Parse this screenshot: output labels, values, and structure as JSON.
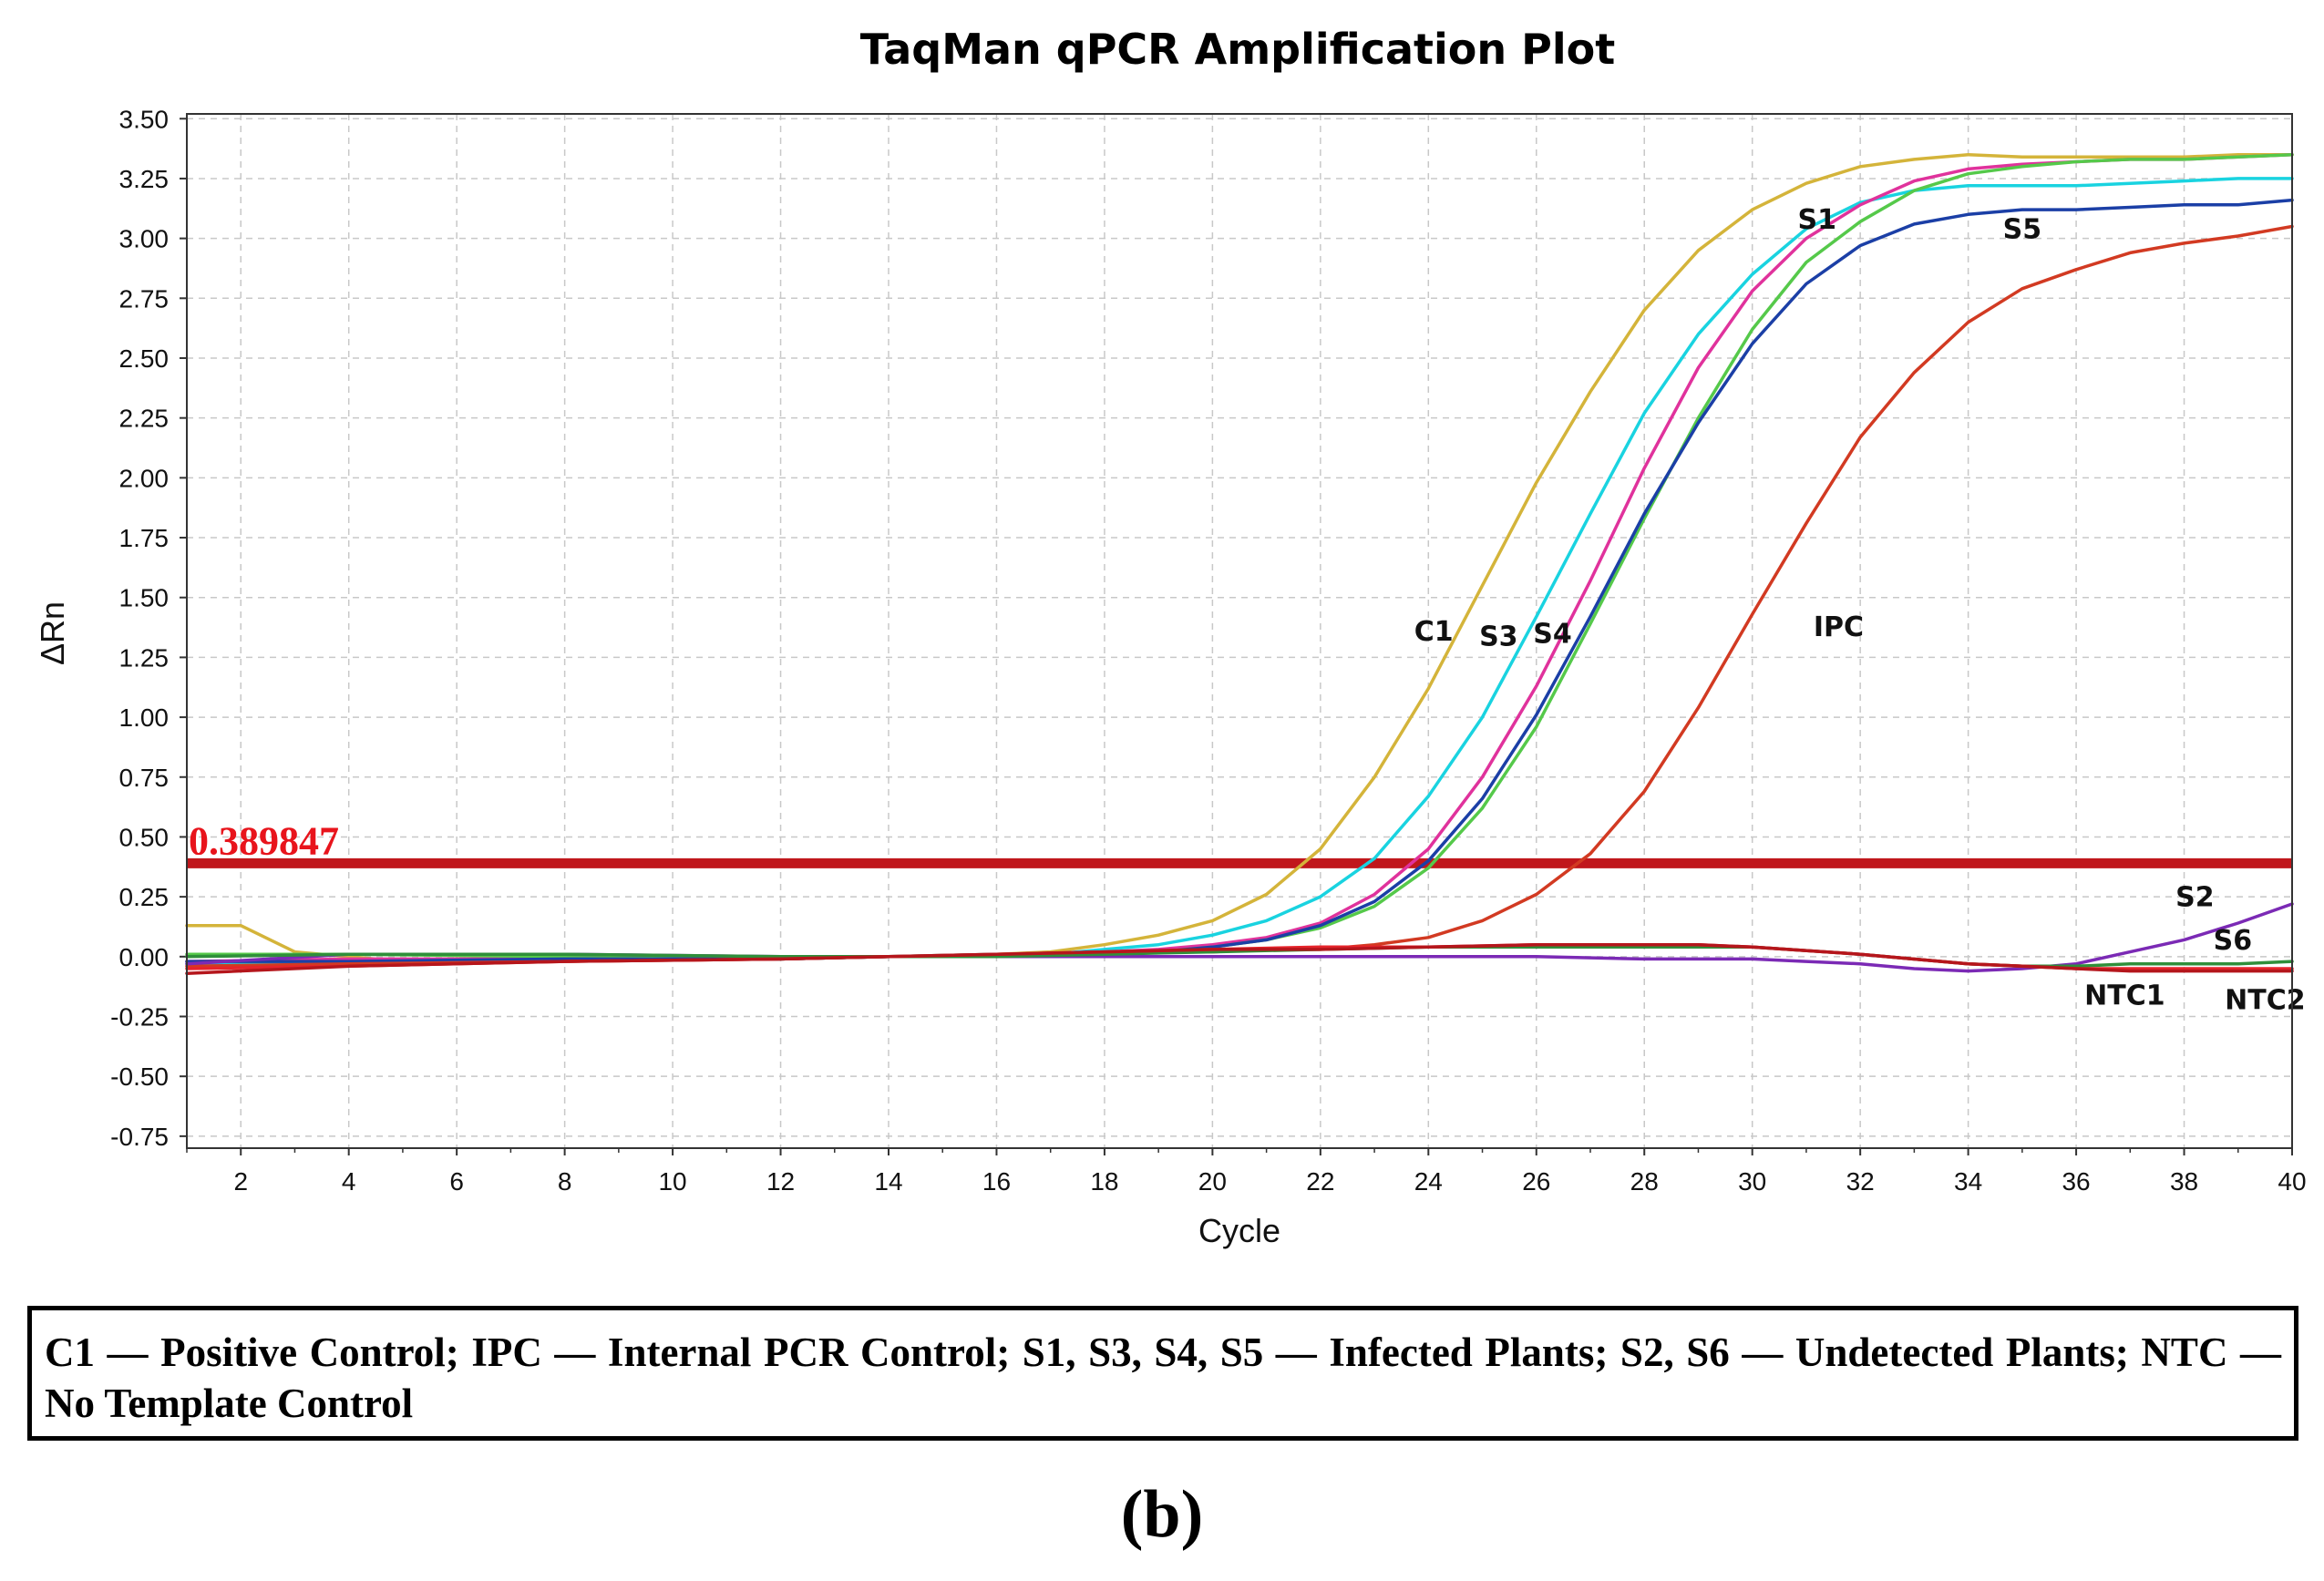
{
  "chart_data": {
    "type": "line",
    "title": "TaqMan qPCR Amplification Plot",
    "xlabel": "Cycle",
    "ylabel": "ΔRn",
    "xlim": [
      1,
      40
    ],
    "ylim": [
      -0.8,
      3.52
    ],
    "x_ticks": [
      2,
      4,
      6,
      8,
      10,
      12,
      14,
      16,
      18,
      20,
      22,
      24,
      26,
      28,
      30,
      32,
      34,
      36,
      38,
      40
    ],
    "y_ticks": [
      3.5,
      3.25,
      3.0,
      2.75,
      2.5,
      2.25,
      2.0,
      1.75,
      1.5,
      1.25,
      1.0,
      0.75,
      0.5,
      0.25,
      0.0,
      -0.25,
      -0.5,
      -0.75
    ],
    "y_tick_labels": [
      "3.50",
      "3.25",
      "3.00",
      "2.75",
      "2.50",
      "2.25",
      "2.00",
      "1.75",
      "1.50",
      "1.25",
      "1.00",
      "0.75",
      "0.50",
      "0.25",
      "0.00",
      "-0.25",
      "-0.50",
      "-0.75"
    ],
    "grid": true,
    "threshold": {
      "value": 0.389847,
      "label": "0.389847",
      "color": "#c0171c",
      "label_color": "#e8141c"
    },
    "series": [
      {
        "name": "C1",
        "color": "#d4b43a",
        "x": [
          1,
          2,
          3,
          4,
          5,
          6,
          8,
          10,
          12,
          14,
          16,
          17,
          18,
          19,
          20,
          21,
          22,
          23,
          24,
          25,
          26,
          27,
          28,
          29,
          30,
          31,
          32,
          33,
          34,
          35,
          36,
          37,
          38,
          39,
          40
        ],
        "y": [
          0.13,
          0.13,
          0.02,
          0.0,
          -0.02,
          -0.01,
          -0.01,
          -0.01,
          -0.01,
          0.0,
          0.01,
          0.02,
          0.05,
          0.09,
          0.15,
          0.26,
          0.45,
          0.75,
          1.12,
          1.55,
          1.98,
          2.36,
          2.7,
          2.95,
          3.12,
          3.23,
          3.3,
          3.33,
          3.35,
          3.34,
          3.34,
          3.34,
          3.34,
          3.35,
          3.35
        ]
      },
      {
        "name": "S3",
        "color": "#19d3e0",
        "x": [
          1,
          4,
          8,
          12,
          14,
          16,
          17,
          18,
          19,
          20,
          21,
          22,
          23,
          24,
          25,
          26,
          27,
          28,
          29,
          30,
          31,
          32,
          33,
          34,
          35,
          36,
          37,
          38,
          39,
          40
        ],
        "y": [
          -0.03,
          -0.02,
          -0.01,
          -0.01,
          0.0,
          0.01,
          0.01,
          0.03,
          0.05,
          0.09,
          0.15,
          0.25,
          0.41,
          0.67,
          1.0,
          1.42,
          1.85,
          2.27,
          2.6,
          2.85,
          3.04,
          3.15,
          3.2,
          3.22,
          3.22,
          3.22,
          3.23,
          3.24,
          3.25,
          3.25
        ]
      },
      {
        "name": "S4",
        "color": "#e0329c",
        "x": [
          1,
          4,
          8,
          12,
          14,
          16,
          17,
          18,
          19,
          20,
          21,
          22,
          23,
          24,
          25,
          26,
          27,
          28,
          29,
          30,
          31,
          32,
          33,
          34,
          35,
          36,
          37,
          38,
          39,
          40
        ],
        "y": [
          -0.02,
          -0.01,
          -0.01,
          -0.01,
          0.0,
          0.0,
          0.01,
          0.02,
          0.03,
          0.05,
          0.08,
          0.14,
          0.26,
          0.45,
          0.75,
          1.13,
          1.57,
          2.04,
          2.46,
          2.78,
          3.0,
          3.14,
          3.24,
          3.29,
          3.31,
          3.32,
          3.33,
          3.33,
          3.34,
          3.35
        ]
      },
      {
        "name": "S1",
        "color": "#55c94a",
        "x": [
          1,
          4,
          8,
          12,
          14,
          16,
          17,
          18,
          19,
          20,
          21,
          22,
          23,
          24,
          25,
          26,
          27,
          28,
          29,
          30,
          31,
          32,
          33,
          34,
          35,
          36,
          37,
          38,
          39,
          40
        ],
        "y": [
          0.01,
          0.01,
          0.0,
          -0.01,
          0.0,
          0.0,
          0.01,
          0.01,
          0.02,
          0.04,
          0.07,
          0.12,
          0.21,
          0.37,
          0.62,
          0.96,
          1.39,
          1.83,
          2.25,
          2.62,
          2.9,
          3.07,
          3.2,
          3.27,
          3.3,
          3.32,
          3.33,
          3.33,
          3.34,
          3.35
        ]
      },
      {
        "name": "S5",
        "color": "#1b3fa6",
        "x": [
          1,
          4,
          8,
          12,
          14,
          16,
          17,
          18,
          19,
          20,
          21,
          22,
          23,
          24,
          25,
          26,
          27,
          28,
          29,
          30,
          31,
          32,
          33,
          34,
          35,
          36,
          37,
          38,
          39,
          40
        ],
        "y": [
          -0.02,
          -0.02,
          -0.01,
          -0.01,
          0.0,
          0.0,
          0.01,
          0.01,
          0.02,
          0.04,
          0.07,
          0.13,
          0.23,
          0.4,
          0.66,
          1.01,
          1.42,
          1.85,
          2.23,
          2.56,
          2.81,
          2.97,
          3.06,
          3.1,
          3.12,
          3.12,
          3.13,
          3.14,
          3.14,
          3.16
        ]
      },
      {
        "name": "IPC",
        "color": "#d23a22",
        "x": [
          1,
          4,
          8,
          12,
          14,
          16,
          17,
          18,
          19,
          20,
          21,
          22,
          23,
          24,
          25,
          26,
          27,
          28,
          29,
          30,
          31,
          32,
          33,
          34,
          35,
          36,
          37,
          38,
          39,
          40
        ],
        "y": [
          -0.04,
          -0.03,
          -0.02,
          -0.01,
          0.0,
          0.0,
          0.01,
          0.01,
          0.02,
          0.02,
          0.03,
          0.03,
          0.05,
          0.08,
          0.15,
          0.26,
          0.43,
          0.69,
          1.04,
          1.43,
          1.81,
          2.17,
          2.44,
          2.65,
          2.79,
          2.87,
          2.94,
          2.98,
          3.01,
          3.05
        ]
      },
      {
        "name": "S2",
        "color": "#7b2ab5",
        "x": [
          1,
          4,
          8,
          12,
          14,
          16,
          18,
          20,
          22,
          24,
          26,
          28,
          30,
          31,
          32,
          33,
          34,
          35,
          36,
          37,
          38,
          39,
          40
        ],
        "y": [
          -0.03,
          0.01,
          0.01,
          0.0,
          0.0,
          0.0,
          0.0,
          0.0,
          0.0,
          0.0,
          0.0,
          -0.01,
          -0.01,
          -0.02,
          -0.03,
          -0.05,
          -0.06,
          -0.05,
          -0.03,
          0.02,
          0.07,
          0.14,
          0.22
        ]
      },
      {
        "name": "S6",
        "color": "#2f8f3a",
        "x": [
          1,
          4,
          8,
          12,
          14,
          16,
          18,
          20,
          22,
          24,
          26,
          28,
          30,
          32,
          34,
          35,
          36,
          37,
          38,
          39,
          40
        ],
        "y": [
          0.0,
          0.01,
          0.01,
          0.0,
          0.0,
          0.0,
          0.01,
          0.02,
          0.03,
          0.04,
          0.04,
          0.04,
          0.04,
          0.01,
          -0.03,
          -0.04,
          -0.04,
          -0.03,
          -0.03,
          -0.03,
          -0.02
        ]
      },
      {
        "name": "NTC1",
        "color": "#e6242b",
        "x": [
          1,
          4,
          8,
          12,
          14,
          16,
          18,
          20,
          22,
          24,
          26,
          28,
          29,
          30,
          32,
          34,
          35,
          36,
          37,
          38,
          39,
          40
        ],
        "y": [
          -0.05,
          -0.04,
          -0.02,
          -0.01,
          0.0,
          0.01,
          0.02,
          0.03,
          0.04,
          0.04,
          0.05,
          0.05,
          0.05,
          0.04,
          0.01,
          -0.03,
          -0.04,
          -0.05,
          -0.05,
          -0.05,
          -0.05,
          -0.05
        ]
      },
      {
        "name": "NTC2",
        "color": "#b5161c",
        "x": [
          1,
          4,
          8,
          12,
          14,
          16,
          18,
          20,
          22,
          24,
          26,
          28,
          29,
          30,
          32,
          34,
          35,
          36,
          37,
          38,
          39,
          40
        ],
        "y": [
          -0.07,
          -0.04,
          -0.02,
          -0.01,
          0.0,
          0.01,
          0.02,
          0.03,
          0.03,
          0.04,
          0.05,
          0.05,
          0.05,
          0.04,
          0.01,
          -0.03,
          -0.04,
          -0.05,
          -0.06,
          -0.06,
          -0.06,
          -0.06
        ]
      }
    ],
    "annotations": [
      {
        "text": "C1",
        "x": 24.1,
        "y": 1.32
      },
      {
        "text": "S3",
        "x": 25.3,
        "y": 1.3
      },
      {
        "text": "S4",
        "x": 26.3,
        "y": 1.31
      },
      {
        "text": "IPC",
        "x": 31.6,
        "y": 1.34
      },
      {
        "text": "S1",
        "x": 31.2,
        "y": 3.04
      },
      {
        "text": "S5",
        "x": 35.0,
        "y": 3.0
      },
      {
        "text": "S2",
        "x": 38.2,
        "y": 0.21
      },
      {
        "text": "S6",
        "x": 38.9,
        "y": 0.03
      },
      {
        "text": "NTC1",
        "x": 36.9,
        "y": -0.2
      },
      {
        "text": "NTC2",
        "x": 39.5,
        "y": -0.22
      }
    ]
  },
  "caption": "C1 — Positive Control; IPC — Internal PCR Control; S1, S3, S4, S5 — Infected Plants; S2, S6 — Undetected Plants; NTC — No Template Control",
  "panel_label": "(b)"
}
